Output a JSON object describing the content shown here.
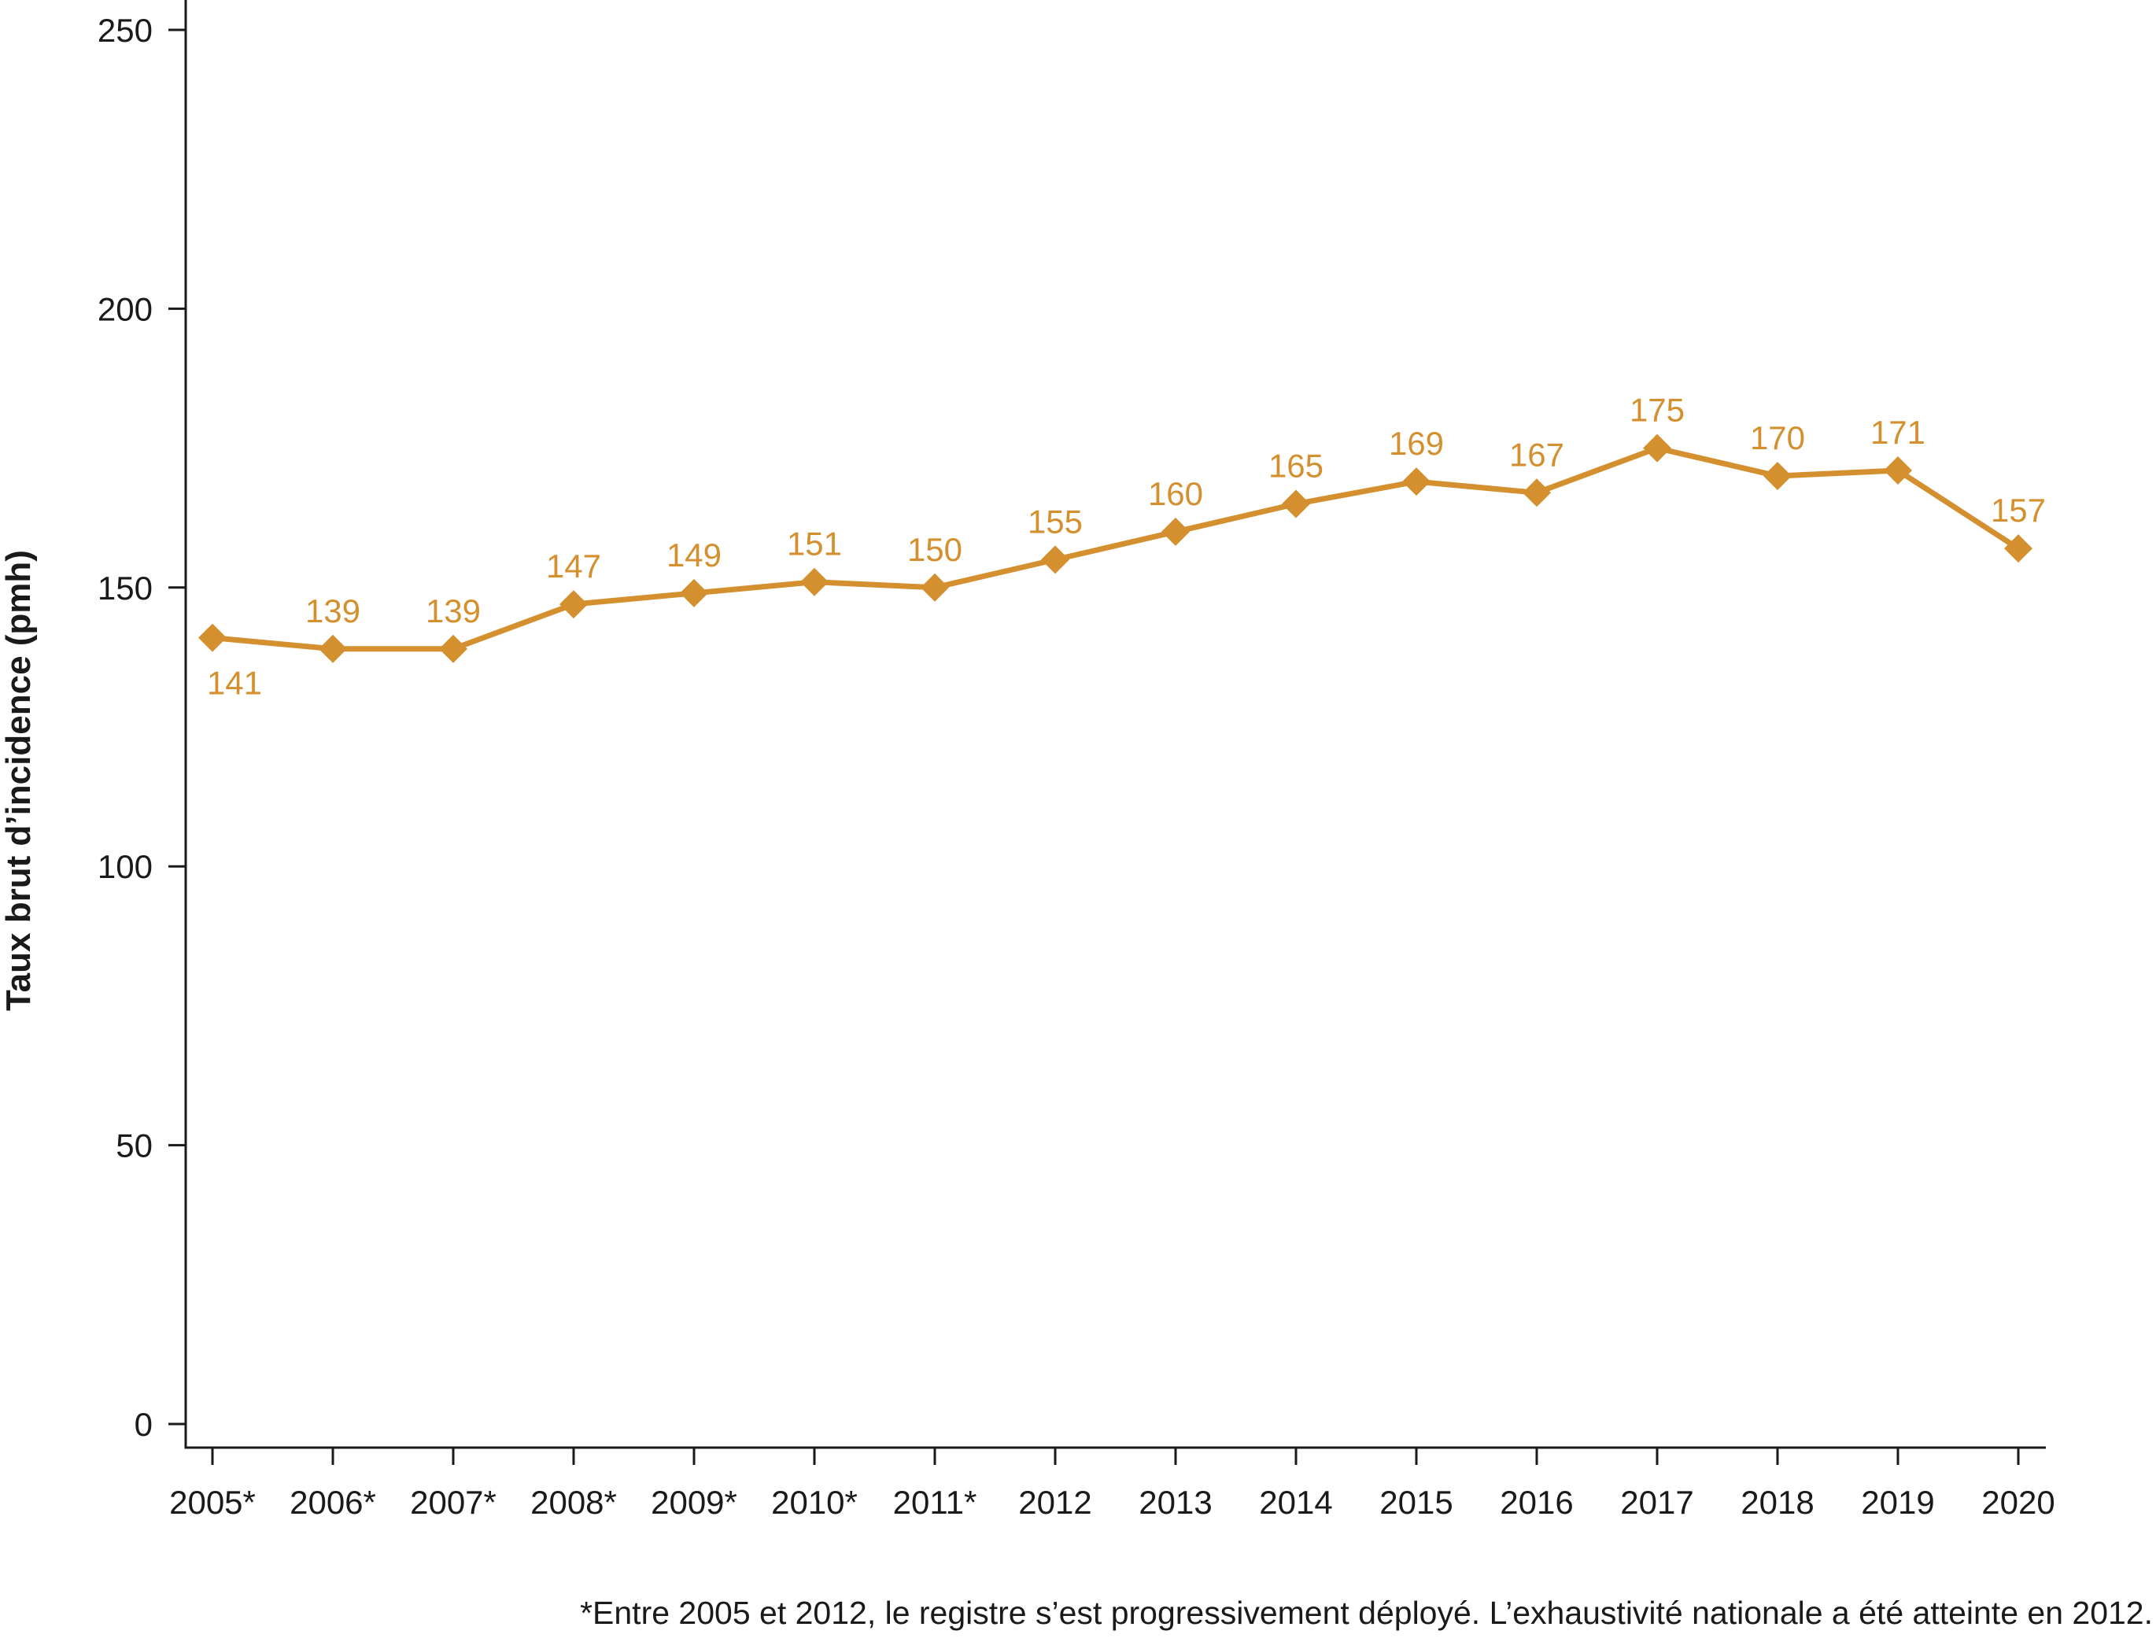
{
  "chart_data": {
    "type": "line",
    "title": "",
    "xlabel": "",
    "ylabel": "Taux brut d’incidence (pmh)",
    "ylim": [
      0,
      250
    ],
    "yticks": [
      0,
      50,
      100,
      150,
      200,
      250
    ],
    "grid": false,
    "legend": "none",
    "categories": [
      "2005*",
      "2006*",
      "2007*",
      "2008*",
      "2009*",
      "2010*",
      "2011*",
      "2012",
      "2013",
      "2014",
      "2015",
      "2016",
      "2017",
      "2018",
      "2019",
      "2020"
    ],
    "series": [
      {
        "values": [
          141,
          139,
          139,
          147,
          149,
          151,
          150,
          155,
          160,
          165,
          169,
          167,
          175,
          170,
          171,
          157
        ],
        "labels": [
          "141",
          "139",
          "139",
          "147",
          "149",
          "151",
          "150",
          "155",
          "160",
          "165",
          "169",
          "167",
          "175",
          "170",
          "171",
          "157"
        ],
        "color": "#D4902F",
        "marker": "diamond"
      }
    ],
    "footnote": "*Entre 2005 et 2012, le registre s’est progressivement déployé. L’exhaustivité nationale a été atteinte en 2012."
  }
}
